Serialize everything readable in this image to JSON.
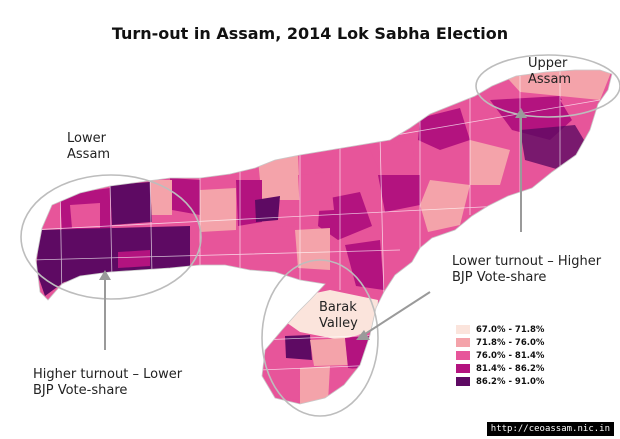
{
  "title": "Turn-out in Assam, 2014 Lok Sabha Election",
  "annotations": {
    "upper_assam": [
      "Upper",
      "Assam"
    ],
    "lower_assam": [
      "Lower",
      "Assam"
    ],
    "barak_valley": [
      "Barak",
      "Valley"
    ],
    "lower_turnout": [
      "Lower turnout – Higher",
      "BJP Vote-share"
    ],
    "higher_turnout": [
      "Higher turnout – Lower",
      "BJP Vote-share"
    ]
  },
  "legend": [
    {
      "label": "67.0% - 71.8%",
      "color": "#fbe4dc"
    },
    {
      "label": "71.8% - 76.0%",
      "color": "#f4a3aa"
    },
    {
      "label": "76.0% - 81.4%",
      "color": "#e7559a"
    },
    {
      "label": "81.4% - 86.2%",
      "color": "#b3137f"
    },
    {
      "label": "86.2% - 91.0%",
      "color": "#5e0a63"
    }
  ],
  "credit": "http://ceoassam.nic.in"
}
